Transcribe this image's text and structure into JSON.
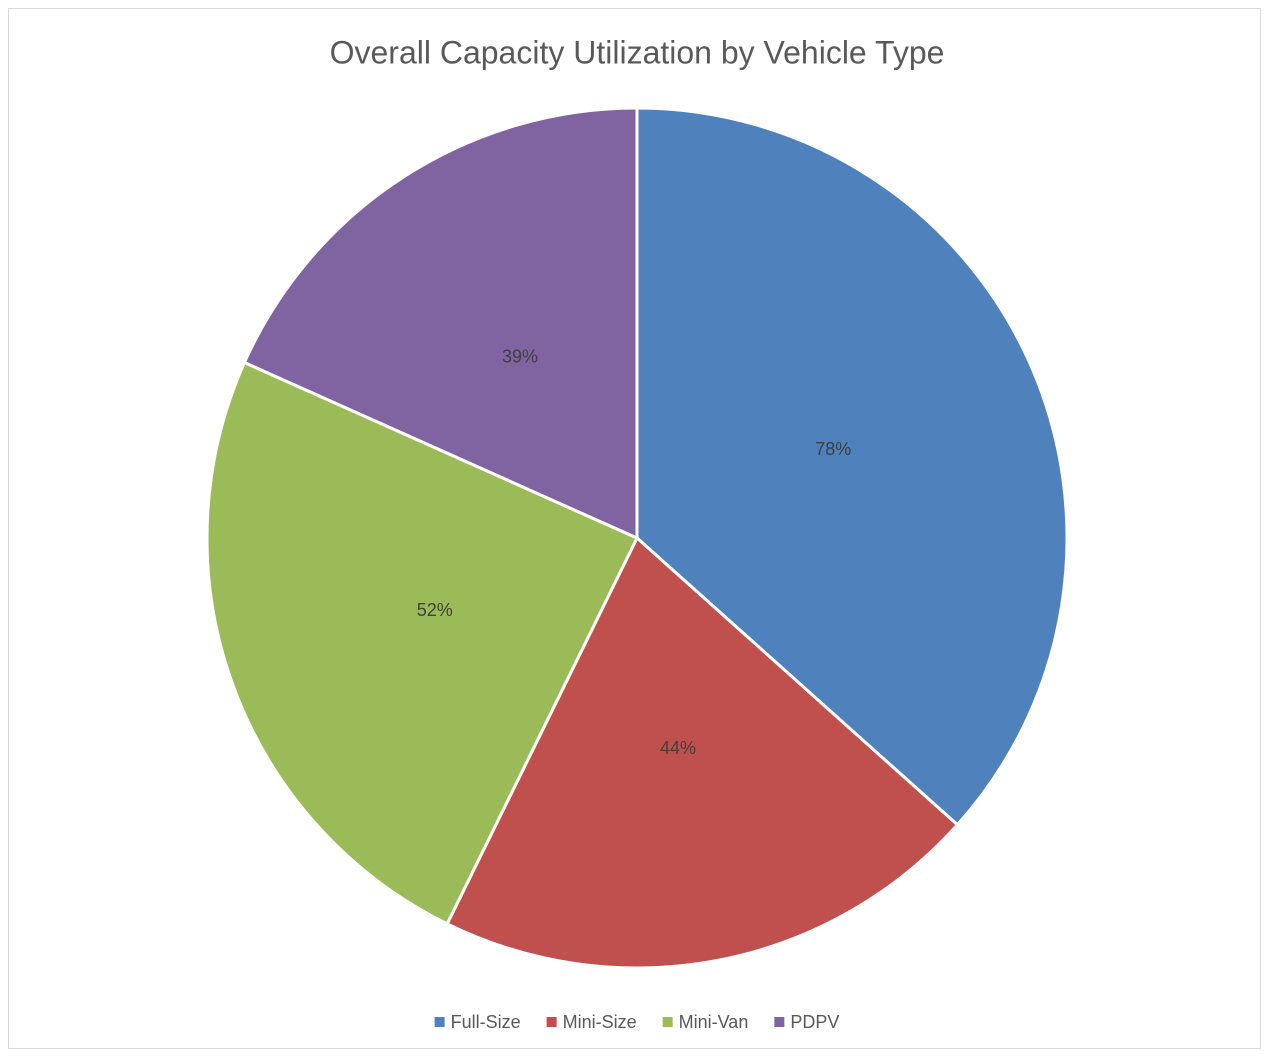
{
  "chart_data": {
    "type": "pie",
    "title": "Overall Capacity Utilization by Vehicle Type",
    "categories": [
      "Full-Size",
      "Mini-Size",
      "Mini-Van",
      "PDPV"
    ],
    "values": [
      78,
      44,
      52,
      39
    ],
    "value_labels": [
      "78%",
      "44%",
      "52%",
      "39%"
    ],
    "colors": [
      "#4f81bd",
      "#c0504d",
      "#9bbb59",
      "#8064a2"
    ],
    "legend": "bottom"
  }
}
